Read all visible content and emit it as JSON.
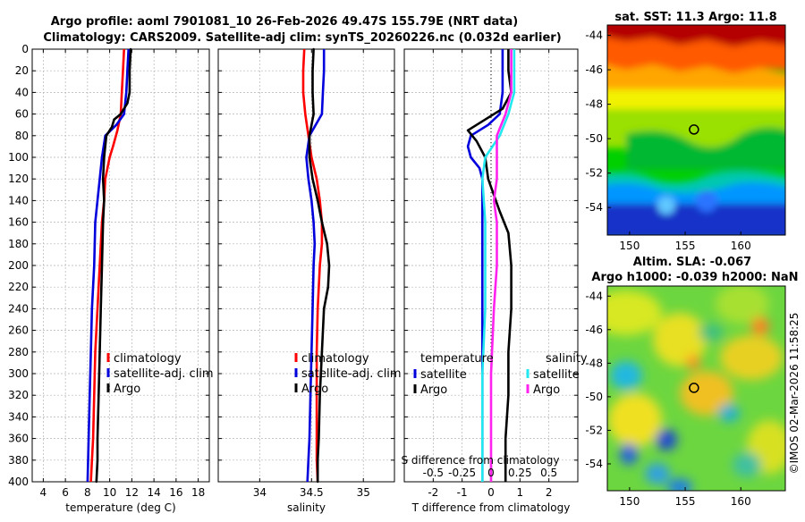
{
  "header": {
    "title_line1": "Argo profile: aoml 7901081_10 26-Feb-2026 49.47S 155.79E (NRT data)",
    "title_line2": "Climatology: CARS2009. Satellite-adj clim: synTS_20260226.nc (0.032d earlier)",
    "watermark": "©IMOS 02-Mar-2026 11:58:25"
  },
  "colors": {
    "climatology": "#ff0000",
    "satellite": "#0000dd",
    "argo": "#000000",
    "satellite_s": "#22e8f0",
    "argo_s": "#ff22ee"
  },
  "chart_data": [
    {
      "type": "line",
      "name": "temperature",
      "xlabel": "temperature (deg C)",
      "xlim": [
        3,
        19
      ],
      "ylim": [
        400,
        0
      ],
      "xticks": [
        4,
        6,
        8,
        10,
        12,
        14,
        16,
        18
      ],
      "yticks": [
        0,
        20,
        40,
        60,
        80,
        100,
        120,
        140,
        160,
        180,
        200,
        220,
        240,
        260,
        280,
        300,
        320,
        340,
        360,
        380,
        400
      ],
      "grid": true,
      "legend": [
        "climatology",
        "satellite-adj. clim",
        "Argo"
      ],
      "series": [
        {
          "name": "climatology",
          "color": "#ff0000",
          "x": [
            11.3,
            11.2,
            11.1,
            11.0,
            10.7,
            10.3,
            10.0,
            9.6,
            9.5,
            9.3,
            9.1,
            8.9,
            8.7,
            8.6,
            8.5,
            8.4,
            8.3
          ],
          "y": [
            0,
            20,
            40,
            60,
            75,
            90,
            100,
            120,
            140,
            160,
            200,
            240,
            280,
            320,
            360,
            380,
            400
          ]
        },
        {
          "name": "satellite-adj. clim",
          "color": "#0000dd",
          "x": [
            11.7,
            11.6,
            11.5,
            11.3,
            10.6,
            9.6,
            9.3,
            9.1,
            8.9,
            8.7,
            8.6,
            8.4,
            8.3,
            8.2,
            8.1,
            8.0
          ],
          "y": [
            0,
            20,
            40,
            60,
            70,
            80,
            100,
            120,
            140,
            160,
            200,
            240,
            280,
            320,
            360,
            400
          ]
        },
        {
          "name": "Argo",
          "color": "#000000",
          "x": [
            11.9,
            11.8,
            11.8,
            11.6,
            11.0,
            10.4,
            10.2,
            9.7,
            9.5,
            9.4,
            9.5,
            9.4,
            9.3,
            9.2,
            9.1,
            9.0,
            8.9,
            8.9,
            8.8
          ],
          "y": [
            0,
            20,
            40,
            50,
            60,
            65,
            72,
            80,
            100,
            120,
            140,
            160,
            200,
            240,
            280,
            320,
            360,
            380,
            400
          ]
        }
      ]
    },
    {
      "type": "line",
      "name": "salinity",
      "xlabel": "salinity",
      "xlim": [
        33.6,
        35.3
      ],
      "ylim": [
        400,
        0
      ],
      "xticks": [
        34,
        34.5,
        35
      ],
      "grid": true,
      "legend": [
        "climatology",
        "satellite-adj. clim",
        "Argo"
      ],
      "series": [
        {
          "name": "climatology",
          "color": "#ff0000",
          "x": [
            34.43,
            34.42,
            34.42,
            34.44,
            34.47,
            34.5,
            34.55,
            34.58,
            34.6,
            34.6,
            34.58,
            34.56,
            34.55,
            34.55,
            34.55,
            34.55,
            34.56
          ],
          "y": [
            0,
            20,
            40,
            60,
            80,
            100,
            120,
            140,
            160,
            180,
            200,
            240,
            280,
            320,
            360,
            380,
            400
          ]
        },
        {
          "name": "satellite-adj. clim",
          "color": "#0000dd",
          "x": [
            34.62,
            34.62,
            34.61,
            34.6,
            34.48,
            34.45,
            34.47,
            34.5,
            34.52,
            34.53,
            34.52,
            34.51,
            34.5,
            34.49,
            34.48,
            34.47,
            34.46
          ],
          "y": [
            0,
            20,
            40,
            60,
            80,
            100,
            120,
            140,
            160,
            180,
            200,
            240,
            280,
            320,
            360,
            380,
            400
          ]
        },
        {
          "name": "Argo",
          "color": "#000000",
          "x": [
            34.52,
            34.51,
            34.51,
            34.52,
            34.48,
            34.48,
            34.51,
            34.56,
            34.6,
            34.65,
            34.67,
            34.66,
            34.62,
            34.6,
            34.58,
            34.57,
            34.56,
            34.56
          ],
          "y": [
            0,
            20,
            40,
            60,
            80,
            100,
            120,
            140,
            160,
            180,
            200,
            220,
            240,
            280,
            320,
            360,
            380,
            400
          ]
        }
      ]
    },
    {
      "type": "line",
      "name": "difference from climatology",
      "xlabel": "T difference from climatology",
      "xlabel_top": "S difference from climatology",
      "xlim": [
        -3,
        3
      ],
      "ylim": [
        400,
        0
      ],
      "xticks": [
        -2,
        -1,
        0,
        1,
        2
      ],
      "xtick_labels_s": [
        "-0.5",
        "-0.25",
        "0",
        "0.25",
        "0.5"
      ],
      "grid": true,
      "legend_headers": [
        "temperature",
        "salinity"
      ],
      "legend": [
        "satellite",
        "Argo",
        "satellite",
        "Argo"
      ],
      "series": [
        {
          "name": "temperature satellite",
          "color": "#0000dd",
          "x": [
            0.4,
            0.4,
            0.4,
            0.3,
            -0.1,
            -0.7,
            -0.8,
            -0.7,
            -0.4,
            -0.3,
            -0.3,
            -0.3,
            -0.3,
            -0.3,
            -0.3,
            -0.3,
            -0.3
          ],
          "y": [
            0,
            20,
            40,
            60,
            70,
            80,
            90,
            100,
            110,
            120,
            160,
            200,
            240,
            280,
            320,
            360,
            400
          ]
        },
        {
          "name": "temperature Argo",
          "color": "#000000",
          "x": [
            0.6,
            0.6,
            0.7,
            0.4,
            -0.2,
            -0.8,
            -0.5,
            -0.2,
            -0.1,
            0.3,
            0.6,
            0.7,
            0.7,
            0.6,
            0.6,
            0.5,
            0.5,
            0.5
          ],
          "y": [
            0,
            20,
            40,
            55,
            65,
            75,
            85,
            100,
            120,
            150,
            170,
            200,
            240,
            280,
            320,
            360,
            380,
            400
          ]
        },
        {
          "name": "salinity satellite",
          "color": "#22e8f0",
          "x": [
            0.8,
            0.8,
            0.8,
            0.6,
            0.3,
            -0.2,
            -0.3,
            -0.2,
            -0.2,
            -0.2,
            -0.3,
            -0.3,
            -0.3
          ],
          "y": [
            0,
            20,
            40,
            60,
            80,
            100,
            120,
            160,
            200,
            240,
            300,
            360,
            400
          ]
        },
        {
          "name": "salinity Argo",
          "color": "#ff22ee",
          "x": [
            0.7,
            0.7,
            0.7,
            0.5,
            0.2,
            0.2,
            0.2,
            0.1,
            0.2,
            0.2,
            0.1,
            0.0,
            0.0,
            0.0
          ],
          "y": [
            0,
            20,
            40,
            60,
            80,
            100,
            120,
            140,
            160,
            200,
            240,
            300,
            360,
            400
          ]
        }
      ]
    },
    {
      "type": "heatmap",
      "name": "sst map",
      "title": "sat. SST: 11.3 Argo: 11.8",
      "xlim": [
        148,
        164
      ],
      "ylim": [
        -55.6,
        -43.4
      ],
      "xticks": [
        150,
        155,
        160
      ],
      "yticks": [
        -44,
        -46,
        -48,
        -50,
        -52,
        -54
      ],
      "argo_location": {
        "lon": 155.79,
        "lat": -49.47
      }
    },
    {
      "type": "heatmap",
      "name": "sla map",
      "title_line1": "Altim. SLA: -0.067",
      "title_line2": "Argo h1000: -0.039 h2000: NaN",
      "xlim": [
        148,
        164
      ],
      "ylim": [
        -55.6,
        -43.4
      ],
      "xticks": [
        150,
        155,
        160
      ],
      "yticks": [
        -44,
        -46,
        -48,
        -50,
        -52,
        -54
      ],
      "argo_location": {
        "lon": 155.79,
        "lat": -49.47
      }
    }
  ]
}
